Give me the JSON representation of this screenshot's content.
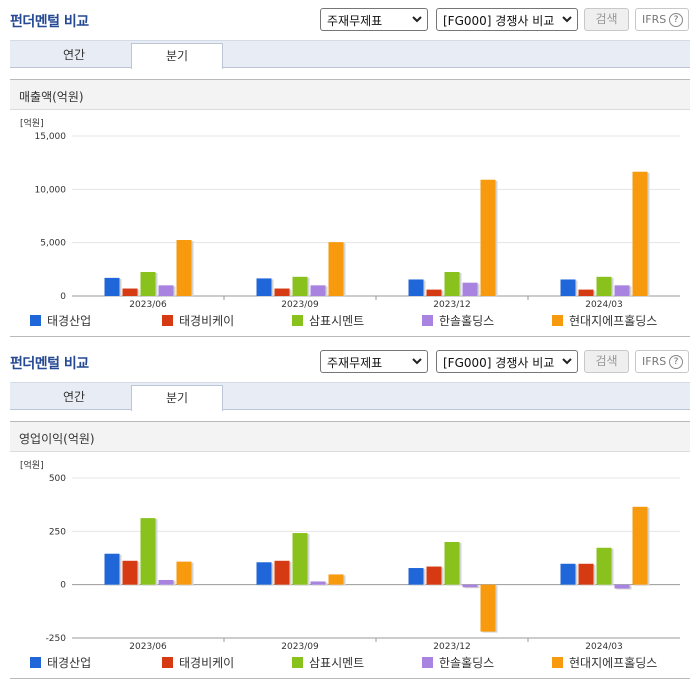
{
  "panels": [
    {
      "title": "펀더멘털 비교",
      "select_statement": "주재무제표",
      "select_compare": "[FG000] 경쟁사 비교",
      "search_label": "검색",
      "ifrs_label": "IFRS",
      "help_glyph": "?",
      "tab_year": "연간",
      "tab_quarter": "분기",
      "section_title": "매출액(억원)"
    },
    {
      "title": "펀더멘털 비교",
      "select_statement": "주재무제표",
      "select_compare": "[FG000] 경쟁사 비교",
      "search_label": "검색",
      "ifrs_label": "IFRS",
      "help_glyph": "?",
      "tab_year": "연간",
      "tab_quarter": "분기",
      "section_title": "영업이익(억원)"
    }
  ],
  "colors": {
    "태경산업": "#1f66d9",
    "태경비케이": "#d63a12",
    "삼표시멘트": "#8ac21d",
    "한솔홀딩스": "#a884e0",
    "현대지에프홀딩스": "#f79a0d"
  },
  "chart_data": [
    {
      "type": "bar",
      "unit_label": "[억원]",
      "categories": [
        "2023/06",
        "2023/09",
        "2023/12",
        "2024/03"
      ],
      "ylim": [
        0,
        15000
      ],
      "yticks": [
        0,
        5000,
        10000,
        15000
      ],
      "ytick_labels": [
        "0",
        "5,000",
        "10,000",
        "15,000"
      ],
      "grid": true,
      "legend_position": "bottom",
      "series": [
        {
          "name": "태경산업",
          "values": [
            1700,
            1650,
            1550,
            1550
          ]
        },
        {
          "name": "태경비케이",
          "values": [
            700,
            700,
            600,
            600
          ]
        },
        {
          "name": "삼표시멘트",
          "values": [
            2250,
            1800,
            2250,
            1800
          ]
        },
        {
          "name": "한솔홀딩스",
          "values": [
            1000,
            1000,
            1250,
            1000
          ]
        },
        {
          "name": "현대지에프홀딩스",
          "values": [
            5250,
            5050,
            10900,
            11650
          ]
        }
      ]
    },
    {
      "type": "bar",
      "unit_label": "[억원]",
      "categories": [
        "2023/06",
        "2023/09",
        "2023/12",
        "2024/03"
      ],
      "ylim": [
        -250,
        500
      ],
      "yticks": [
        -250,
        0,
        250,
        500
      ],
      "ytick_labels": [
        "-250",
        "0",
        "250",
        "500"
      ],
      "grid": true,
      "legend_position": "bottom",
      "series": [
        {
          "name": "태경산업",
          "values": [
            145,
            105,
            78,
            98
          ]
        },
        {
          "name": "태경비케이",
          "values": [
            112,
            112,
            85,
            98
          ]
        },
        {
          "name": "삼표시멘트",
          "values": [
            312,
            242,
            200,
            173
          ]
        },
        {
          "name": "한솔홀딩스",
          "values": [
            22,
            15,
            -12,
            -18
          ]
        },
        {
          "name": "현대지에프홀딩스",
          "values": [
            108,
            48,
            -220,
            365
          ]
        }
      ]
    }
  ]
}
